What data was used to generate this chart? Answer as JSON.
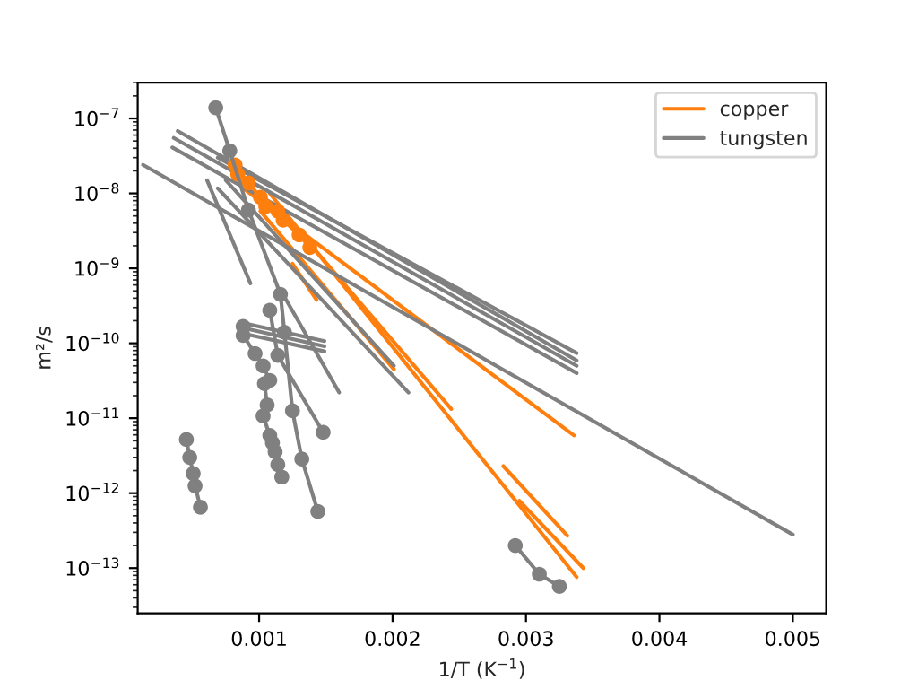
{
  "chart_data": {
    "type": "line",
    "xlabel": "1/T (K$^{−1}$)",
    "ylabel": "m²/s",
    "log": "y",
    "legend": "top right",
    "grid": false,
    "xlim": [
      9e-05,
      0.00525
    ],
    "ylim": [
      2.5e-14,
      3e-07
    ],
    "xticks": [
      0.001,
      0.002,
      0.003,
      0.004,
      0.005
    ],
    "yticks": [
      {
        "value": 1e-13,
        "label": "10$^{−13}$"
      },
      {
        "value": 1e-12,
        "label": "10$^{−12}$"
      },
      {
        "value": 1e-11,
        "label": "10$^{−11}$"
      },
      {
        "value": 1e-10,
        "label": "10$^{−10}$"
      },
      {
        "value": 1e-09,
        "label": "10$^{−9}$"
      },
      {
        "value": 1e-08,
        "label": "10$^{−8}$"
      },
      {
        "value": 1e-07,
        "label": "10$^{−7}$"
      }
    ],
    "series": [
      {
        "name": "copper",
        "color": "#ff7f0e",
        "marker": "circle",
        "x": [
          0.00082,
          0.00084,
          0.00092,
          0.00101,
          0.00105,
          0.00114,
          0.00118,
          0.0013,
          0.00138
        ],
        "values": [
          2.4e-08,
          1.8e-08,
          1.38e-08,
          8.9e-09,
          6.7e-09,
          5.8e-09,
          4.4e-09,
          2.8e-09,
          1.9e-09
        ]
      },
      {
        "color": "#ff7f0e",
        "marker": "none",
        "x": [
          0.00088,
          0.00336
        ],
        "values": [
          1.17e-08,
          5.9e-12
        ]
      },
      {
        "color": "#ff7f0e",
        "marker": "none",
        "x": [
          0.00108,
          0.00338
        ],
        "values": [
          1e-08,
          7.6e-14
        ]
      },
      {
        "color": "#ff7f0e",
        "marker": "none",
        "x": [
          0.00114,
          0.00244
        ],
        "values": [
          6.7e-09,
          1.33e-11
        ]
      },
      {
        "color": "#ff7f0e",
        "marker": "none",
        "x": [
          0.00101,
          0.00201
        ],
        "values": [
          5.8e-09,
          4.5e-11
        ]
      },
      {
        "color": "#ff7f0e",
        "marker": "none",
        "x": [
          0.00125,
          0.00143
        ],
        "values": [
          1.15e-09,
          3.8e-10
        ]
      },
      {
        "color": "#ff7f0e",
        "marker": "none",
        "x": [
          0.00283,
          0.00331
        ],
        "values": [
          2.3e-12,
          2.7e-13
        ]
      },
      {
        "color": "#ff7f0e",
        "marker": "none",
        "x": [
          0.00295,
          0.00343
        ],
        "values": [
          7.9e-13,
          1e-13
        ]
      },
      {
        "name": "tungsten",
        "color": "#808080",
        "marker": "none",
        "x": [
          0.00069,
          0.00338
        ],
        "values": [
          3e-08,
          7.4e-11
        ]
      },
      {
        "color": "#808080",
        "marker": "none",
        "x": [
          0.00039,
          0.00338
        ],
        "values": [
          6.8e-08,
          5.9e-11
        ]
      },
      {
        "color": "#808080",
        "marker": "none",
        "x": [
          0.00036,
          0.00338
        ],
        "values": [
          5.5e-08,
          5e-11
        ]
      },
      {
        "color": "#808080",
        "marker": "none",
        "x": [
          0.00035,
          0.00338
        ],
        "values": [
          4.1e-08,
          4e-11
        ]
      },
      {
        "color": "#808080",
        "marker": "none",
        "x": [
          0.00013,
          0.005
        ],
        "values": [
          2.4e-08,
          2.8e-13
        ]
      },
      {
        "color": "#808080",
        "marker": "none",
        "x": [
          0.00061,
          0.000935
        ],
        "values": [
          1.5e-08,
          6.3e-10
        ]
      },
      {
        "color": "#808080",
        "marker": "none",
        "x": [
          0.00075,
          0.00201
        ],
        "values": [
          1.5e-08,
          5e-11
        ]
      },
      {
        "color": "#808080",
        "marker": "none",
        "x": [
          0.00069,
          0.00212
        ],
        "values": [
          1.17e-08,
          2.2e-11
        ]
      },
      {
        "color": "#808080",
        "marker": "none",
        "x": [
          0.00088,
          0.00149
        ],
        "values": [
          1.87e-10,
          1.07e-10
        ]
      },
      {
        "color": "#808080",
        "marker": "none",
        "x": [
          0.00088,
          0.00149
        ],
        "values": [
          1.6e-10,
          9.1e-11
        ]
      },
      {
        "color": "#808080",
        "marker": "none",
        "x": [
          0.00088,
          0.00149
        ],
        "values": [
          1.35e-10,
          7.8e-11
        ]
      },
      {
        "color": "#808080",
        "marker": "none",
        "x": [
          0.00117,
          0.0016
        ],
        "values": [
          4.8e-10,
          2.2e-11
        ]
      },
      {
        "color": "#808080",
        "marker": "circle",
        "x": [
          0.000675,
          0.00078,
          0.00092,
          0.00116,
          0.00119,
          0.00125,
          0.00132,
          0.00144
        ],
        "values": [
          1.39e-07,
          3.7e-08,
          6e-09,
          4.5e-10,
          1.4e-10,
          1.26e-11,
          2.85e-12,
          5.7e-13
        ]
      },
      {
        "color": "#808080",
        "marker": "circle",
        "x": [
          0.00088,
          0.00088,
          0.00097,
          0.00103,
          0.00108,
          0.00104,
          0.00106,
          0.00103,
          0.00108,
          0.0011,
          0.00112,
          0.00114,
          0.00117
        ],
        "values": [
          1.68e-10,
          1.27e-10,
          7.3e-11,
          5e-11,
          3.2e-11,
          2.9e-11,
          1.5e-11,
          1.07e-11,
          5.9e-12,
          4.7e-12,
          3.55e-12,
          2.4e-12,
          1.64e-12
        ]
      },
      {
        "color": "#808080",
        "marker": "circle",
        "x": [
          0.00108,
          0.00114,
          0.00148
        ],
        "values": [
          2.75e-10,
          6.9e-11,
          6.5e-12
        ]
      },
      {
        "color": "#808080",
        "marker": "circle",
        "x": [
          0.000455,
          0.00048,
          0.000506,
          0.00052,
          0.00056
        ],
        "values": [
          5.2e-12,
          3e-12,
          1.83e-12,
          1.25e-12,
          6.5e-13
        ]
      },
      {
        "color": "#808080",
        "marker": "circle",
        "x": [
          0.00292,
          0.0031,
          0.00325
        ],
        "values": [
          2e-13,
          8.3e-14,
          5.7e-14
        ]
      }
    ]
  }
}
